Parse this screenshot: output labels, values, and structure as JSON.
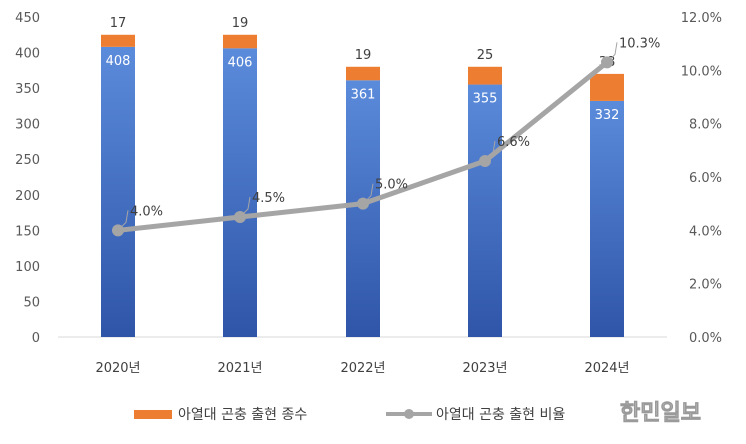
{
  "chart_data": {
    "type": "bar",
    "categories": [
      "2020년",
      "2021년",
      "2022년",
      "2023년",
      "2024년"
    ],
    "series": [
      {
        "name": "아열대 곤충 출현 종수",
        "kind": "stacked-bar-base",
        "values": [
          408,
          406,
          361,
          355,
          332
        ],
        "color": "#4472C4"
      },
      {
        "name": "아열대 곤충 출현 종수",
        "kind": "stacked-bar-top",
        "values": [
          17,
          19,
          19,
          25,
          38
        ],
        "color": "#ED7D31"
      },
      {
        "name": "아열대 곤충 출현 비율",
        "kind": "line",
        "axis": "right",
        "values": [
          4.0,
          4.5,
          5.0,
          6.6,
          10.3
        ],
        "color": "#A5A5A5"
      }
    ],
    "y_left": {
      "ylim": [
        0,
        450
      ],
      "ticks": [
        "0",
        "50",
        "100",
        "150",
        "200",
        "250",
        "300",
        "350",
        "400",
        "450"
      ]
    },
    "y_right": {
      "ylim": [
        0,
        12
      ],
      "ticks": [
        "0.0%",
        "2.0%",
        "4.0%",
        "6.0%",
        "8.0%",
        "10.0%",
        "12.0%"
      ]
    },
    "line_labels": [
      "4.0%",
      "4.5%",
      "5.0%",
      "6.6%",
      "10.3%"
    ],
    "legend": [
      "아열대 곤충 출현 종수",
      "아열대 곤충 출현 비율"
    ],
    "legend_position": "bottom",
    "grid": false
  },
  "watermark": "한민일보"
}
